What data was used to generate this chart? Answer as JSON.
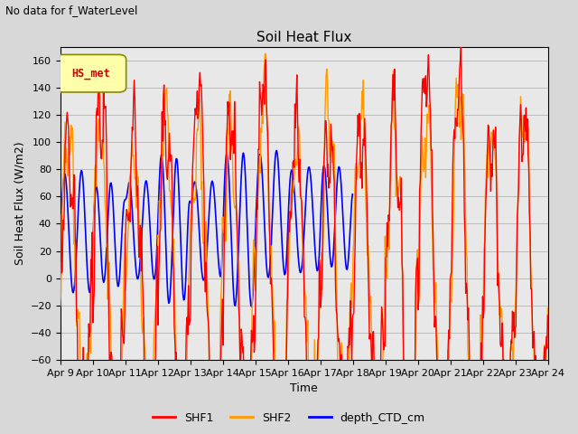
{
  "title": "Soil Heat Flux",
  "suptitle": "No data for f_WaterLevel",
  "ylabel": "Soil Heat Flux (W/m2)",
  "xlabel": "Time",
  "ylim": [
    -60,
    170
  ],
  "yticks": [
    -60,
    -40,
    -20,
    0,
    20,
    40,
    60,
    80,
    100,
    120,
    140,
    160
  ],
  "xtick_labels": [
    "Apr 9",
    "Apr 10",
    "Apr 11",
    "Apr 12",
    "Apr 13",
    "Apr 14",
    "Apr 15",
    "Apr 16",
    "Apr 17",
    "Apr 18",
    "Apr 19",
    "Apr 20",
    "Apr 21",
    "Apr 22",
    "Apr 23",
    "Apr 24"
  ],
  "legend_label_inset": "HS_met",
  "legend_labels": [
    "SHF1",
    "SHF2",
    "depth_CTD_cm"
  ],
  "colors": {
    "SHF1": "#ff0000",
    "SHF2": "#ff9900",
    "depth_CTD_cm": "#0000ff"
  },
  "bg_color": "#d8d8d8",
  "plot_bg": "#e8e8e8",
  "n_days": 15,
  "points_per_day": 48
}
